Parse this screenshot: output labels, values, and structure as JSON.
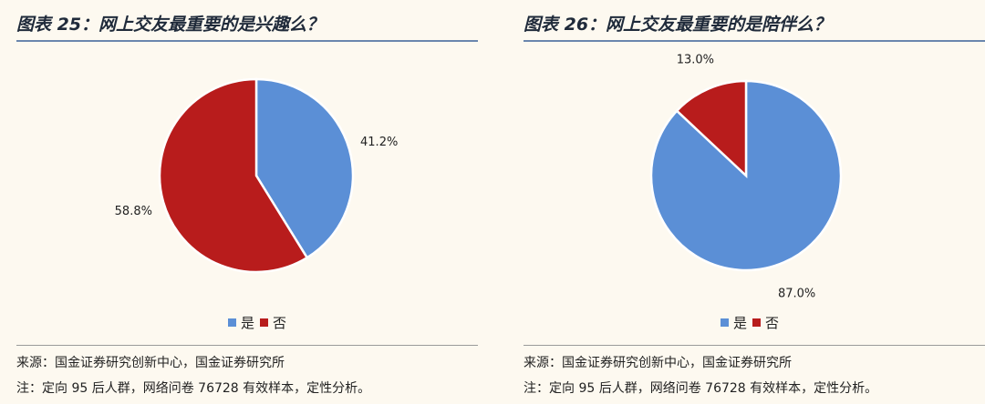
{
  "colors": {
    "yes": "#5b8fd6",
    "no": "#b81c1c",
    "rule": "#6a86ad"
  },
  "chart_data": [
    {
      "type": "pie",
      "title": "图表 25：网上交友最重要的是兴趣么？",
      "categories": [
        "是",
        "否"
      ],
      "values": [
        41.2,
        58.8
      ],
      "labels": [
        "41.2%",
        "58.8%"
      ],
      "legend_position": "bottom",
      "source": "来源：国金证券研究创新中心，国金证券研究所",
      "note": "注：定向 95 后人群，网络问卷 76728 有效样本，定性分析。"
    },
    {
      "type": "pie",
      "title": "图表 26：网上交友最重要的是陪伴么？",
      "categories": [
        "是",
        "否"
      ],
      "values": [
        87.0,
        13.0
      ],
      "labels": [
        "87.0%",
        "13.0%"
      ],
      "legend_position": "bottom",
      "source": "来源：国金证券研究创新中心，国金证券研究所",
      "note": "注：定向 95 后人群，网络问卷 76728 有效样本，定性分析。"
    }
  ]
}
